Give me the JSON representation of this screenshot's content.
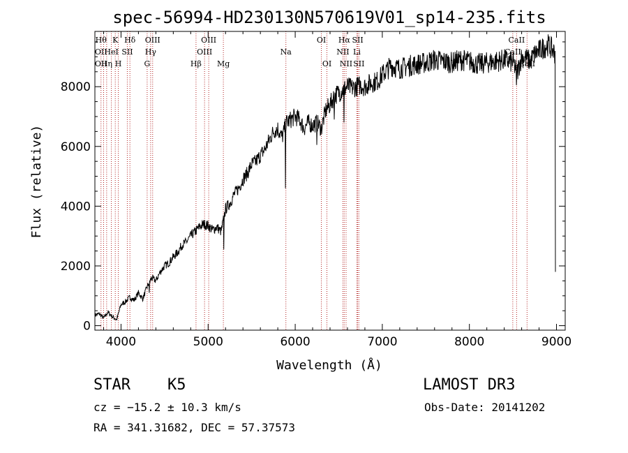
{
  "chart_data": {
    "type": "line",
    "title": "spec-56994-HD230130N570619V01_sp14-235.fits",
    "xlabel": "Wavelength (Å)",
    "ylabel": "Flux (relative)",
    "xlim": [
      3700,
      9100
    ],
    "ylim": [
      -150,
      9850
    ],
    "xticks": [
      4000,
      5000,
      6000,
      7000,
      8000,
      9000
    ],
    "yticks": [
      0,
      2000,
      4000,
      6000,
      8000
    ],
    "series": [
      {
        "name": "Flux",
        "x": [
          3700,
          3750,
          3800,
          3850,
          3900,
          3950,
          4000,
          4050,
          4100,
          4150,
          4200,
          4250,
          4300,
          4350,
          4400,
          4450,
          4500,
          4550,
          4600,
          4650,
          4700,
          4750,
          4800,
          4850,
          4900,
          4950,
          5000,
          5050,
          5100,
          5150,
          5200,
          5250,
          5300,
          5350,
          5400,
          5450,
          5500,
          5550,
          5600,
          5650,
          5700,
          5750,
          5800,
          5850,
          5900,
          5950,
          6000,
          6050,
          6100,
          6150,
          6200,
          6250,
          6300,
          6350,
          6400,
          6450,
          6500,
          6550,
          6600,
          6650,
          6700,
          6750,
          6800,
          6850,
          6900,
          6950,
          7000,
          7100,
          7200,
          7300,
          7400,
          7500,
          7600,
          7700,
          7800,
          7900,
          8000,
          8100,
          8200,
          8300,
          8400,
          8500,
          8550,
          8600,
          8650,
          8700,
          8750,
          8800,
          8850,
          8900,
          8950,
          8990
        ],
        "y": [
          350,
          400,
          250,
          450,
          300,
          200,
          700,
          800,
          950,
          850,
          1100,
          900,
          1300,
          1600,
          1500,
          1800,
          2000,
          2100,
          2300,
          2450,
          2700,
          2800,
          3000,
          3150,
          3300,
          3400,
          3350,
          3200,
          3300,
          3150,
          3900,
          4100,
          4400,
          4600,
          4900,
          5100,
          5400,
          5500,
          5700,
          5900,
          6200,
          6500,
          6600,
          6300,
          6800,
          6900,
          7000,
          6900,
          6600,
          6800,
          6700,
          6800,
          6600,
          7200,
          7400,
          7700,
          7800,
          7900,
          8000,
          7950,
          8000,
          8050,
          8000,
          8100,
          8150,
          8200,
          8400,
          8700,
          8600,
          8700,
          8750,
          8800,
          8900,
          8850,
          8800,
          8900,
          8850,
          8750,
          8800,
          8850,
          8900,
          8800,
          8500,
          9000,
          8950,
          8850,
          9100,
          9200,
          9300,
          9400,
          9250,
          9100
        ]
      }
    ],
    "spikes": [
      {
        "x": 4325,
        "y": 1100
      },
      {
        "x": 5180,
        "y": 2550
      },
      {
        "x": 5890,
        "y": 4600
      },
      {
        "x": 6250,
        "y": 6050
      },
      {
        "x": 6450,
        "y": 6900
      },
      {
        "x": 6562,
        "y": 6800
      },
      {
        "x": 8542,
        "y": 8050
      },
      {
        "x": 8990,
        "y": 1800
      }
    ],
    "line_markers": [
      {
        "x": 3770,
        "labels": [
          "Hθ",
          "OII",
          "OII"
        ]
      },
      {
        "x": 3800,
        "labels": []
      },
      {
        "x": 3835,
        "labels": [
          "",
          "",
          "Hη"
        ]
      },
      {
        "x": 3889,
        "labels": [
          "",
          "HeI",
          ""
        ]
      },
      {
        "x": 3934,
        "labels": [
          "K",
          "",
          ""
        ]
      },
      {
        "x": 3969,
        "labels": [
          "",
          "",
          "H"
        ]
      },
      {
        "x": 4072,
        "labels": [
          "",
          "SII",
          ""
        ]
      },
      {
        "x": 4102,
        "labels": [
          "Hδ",
          "",
          ""
        ]
      },
      {
        "x": 4300,
        "labels": [
          "",
          "",
          "G"
        ]
      },
      {
        "x": 4340,
        "labels": [
          "",
          "Hγ",
          ""
        ]
      },
      {
        "x": 4363,
        "labels": [
          "OIII",
          "",
          ""
        ]
      },
      {
        "x": 4861,
        "labels": [
          "",
          "",
          "Hβ"
        ]
      },
      {
        "x": 4959,
        "labels": [
          "",
          "OIII",
          ""
        ]
      },
      {
        "x": 5007,
        "labels": [
          "OIII",
          "",
          ""
        ]
      },
      {
        "x": 5175,
        "labels": [
          "",
          "",
          "Mg"
        ]
      },
      {
        "x": 5893,
        "labels": [
          "",
          "Na",
          ""
        ]
      },
      {
        "x": 6300,
        "labels": [
          "OI",
          "",
          ""
        ]
      },
      {
        "x": 6364,
        "labels": [
          "",
          "",
          "OI"
        ]
      },
      {
        "x": 6548,
        "labels": [
          "",
          "NII",
          ""
        ]
      },
      {
        "x": 6563,
        "labels": [
          "Hα",
          "",
          ""
        ]
      },
      {
        "x": 6584,
        "labels": [
          "",
          "",
          "NII"
        ]
      },
      {
        "x": 6708,
        "labels": [
          "",
          "Li",
          ""
        ]
      },
      {
        "x": 6717,
        "labels": [
          "SII",
          "",
          ""
        ]
      },
      {
        "x": 6731,
        "labels": [
          "",
          "",
          "SII"
        ]
      },
      {
        "x": 8498,
        "labels": [
          "",
          "CaII",
          ""
        ]
      },
      {
        "x": 8542,
        "labels": [
          "CaII",
          "",
          ""
        ]
      },
      {
        "x": 8662,
        "labels": [
          "",
          "",
          "CaII"
        ]
      }
    ]
  },
  "info": {
    "object_class": "STAR",
    "subclass": "K5",
    "survey": "LAMOST DR3",
    "redshift": "cz = −15.2 ± 10.3 km/s",
    "obs_date": "Obs-Date: 20141202",
    "coords": "RA = 341.31682, DEC =  57.37573"
  },
  "colors": {
    "axis": "#000000",
    "spectrum": "#000000",
    "marker_line": "#b22222",
    "background": "#ffffff"
  }
}
